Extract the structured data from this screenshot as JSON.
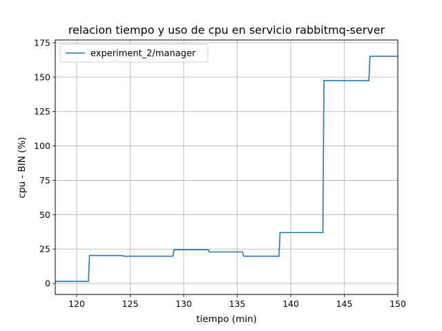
{
  "chart_data": {
    "type": "line",
    "title": "relacion tiempo y uso de cpu en servicio rabbitmq-server",
    "xlabel": "tiempo (min)",
    "ylabel": "cpu - BIN (%)",
    "xlim": [
      118,
      150
    ],
    "ylim": [
      -8,
      177
    ],
    "xticks": [
      120,
      125,
      130,
      135,
      140,
      145,
      150
    ],
    "yticks": [
      0,
      25,
      50,
      75,
      100,
      125,
      150,
      175
    ],
    "grid": true,
    "legend": "top-left",
    "series": [
      {
        "name": "experiment_2/manager",
        "color": "#1f77b4",
        "step": true,
        "points": [
          [
            118,
            1.5
          ],
          [
            121.1,
            1.5
          ],
          [
            121.2,
            20.3
          ],
          [
            124.3,
            20.3
          ],
          [
            124.4,
            19.8
          ],
          [
            129.0,
            19.8
          ],
          [
            129.1,
            24.5
          ],
          [
            132.3,
            24.5
          ],
          [
            132.4,
            22.9
          ],
          [
            135.5,
            22.9
          ],
          [
            135.6,
            19.8
          ],
          [
            138.9,
            19.8
          ],
          [
            139.0,
            37.0
          ],
          [
            143.0,
            37.0
          ],
          [
            143.1,
            147.5
          ],
          [
            147.3,
            147.5
          ],
          [
            147.4,
            165.2
          ],
          [
            150,
            165.2
          ]
        ]
      }
    ]
  }
}
